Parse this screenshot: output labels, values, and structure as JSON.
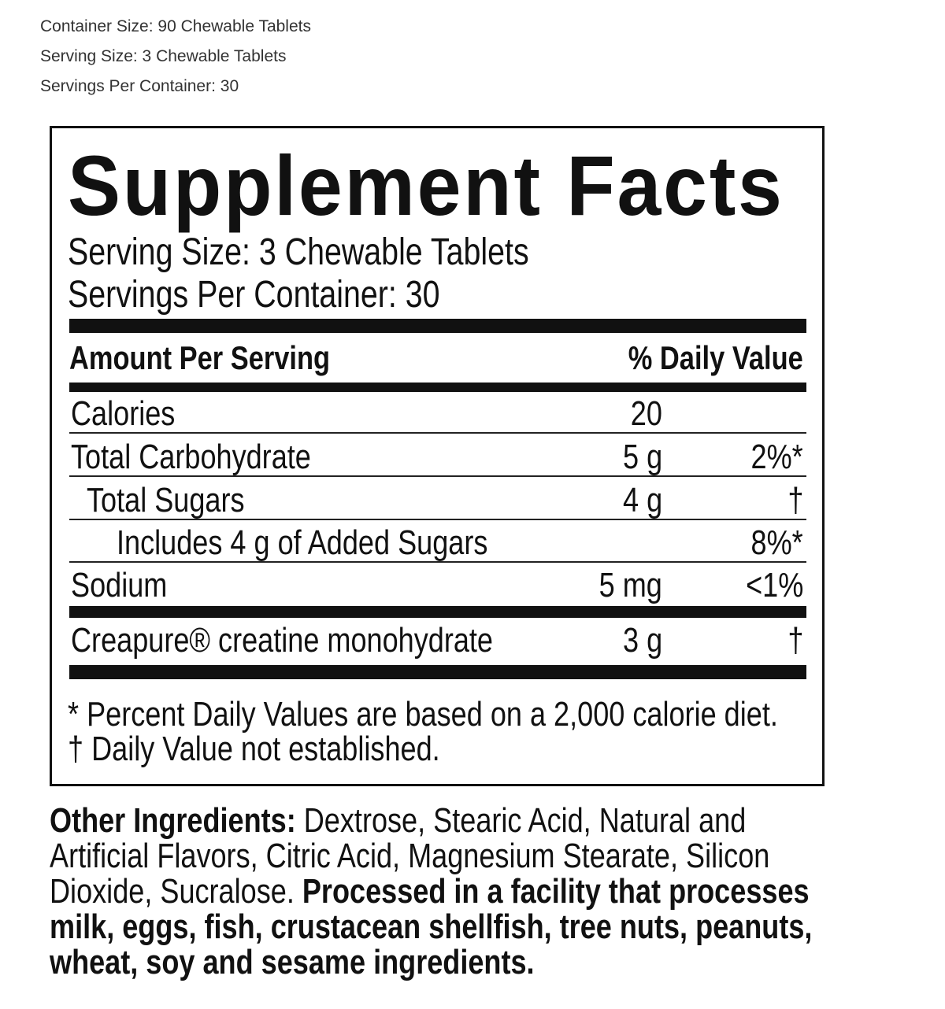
{
  "header": {
    "container_size": "Container Size: 90 Chewable Tablets",
    "serving_size": "Serving Size: 3 Chewable Tablets",
    "servings_per_container": "Servings Per Container: 30"
  },
  "facts": {
    "title": "Supplement Facts",
    "serving_size": "Serving Size: 3 Chewable Tablets",
    "servings_per_container": "Servings Per Container: 30",
    "amount_header": "Amount Per Serving",
    "dv_header": "% Daily Value",
    "rows": [
      {
        "name": "Calories",
        "amount": "20",
        "dv": ""
      },
      {
        "name": "Total Carbohydrate",
        "amount": "5 g",
        "dv": "2%*"
      },
      {
        "name": "Total Sugars",
        "amount": "4 g",
        "dv": "†"
      },
      {
        "name": "Includes 4 g of Added Sugars",
        "amount": "",
        "dv": "8%*"
      },
      {
        "name": "Sodium",
        "amount": "5 mg",
        "dv": "<1%"
      },
      {
        "name": "Creapure® creatine monohydrate",
        "amount": "3 g",
        "dv": "†"
      }
    ],
    "footnote1": "* Percent Daily Values are based on a 2,000 calorie diet.",
    "footnote2": "† Daily Value not established."
  },
  "other": {
    "label": "Other Ingredients:",
    "ingredients": " Dextrose, Stearic Acid, Natural and Artificial Flavors, Citric Acid, Magnesium Stearate, Silicon Dioxide, Sucralose. ",
    "allergen": "Processed in a facility that processes milk, eggs, fish, crustacean shellfish, tree nuts, peanuts, wheat, soy and sesame ingredients."
  }
}
